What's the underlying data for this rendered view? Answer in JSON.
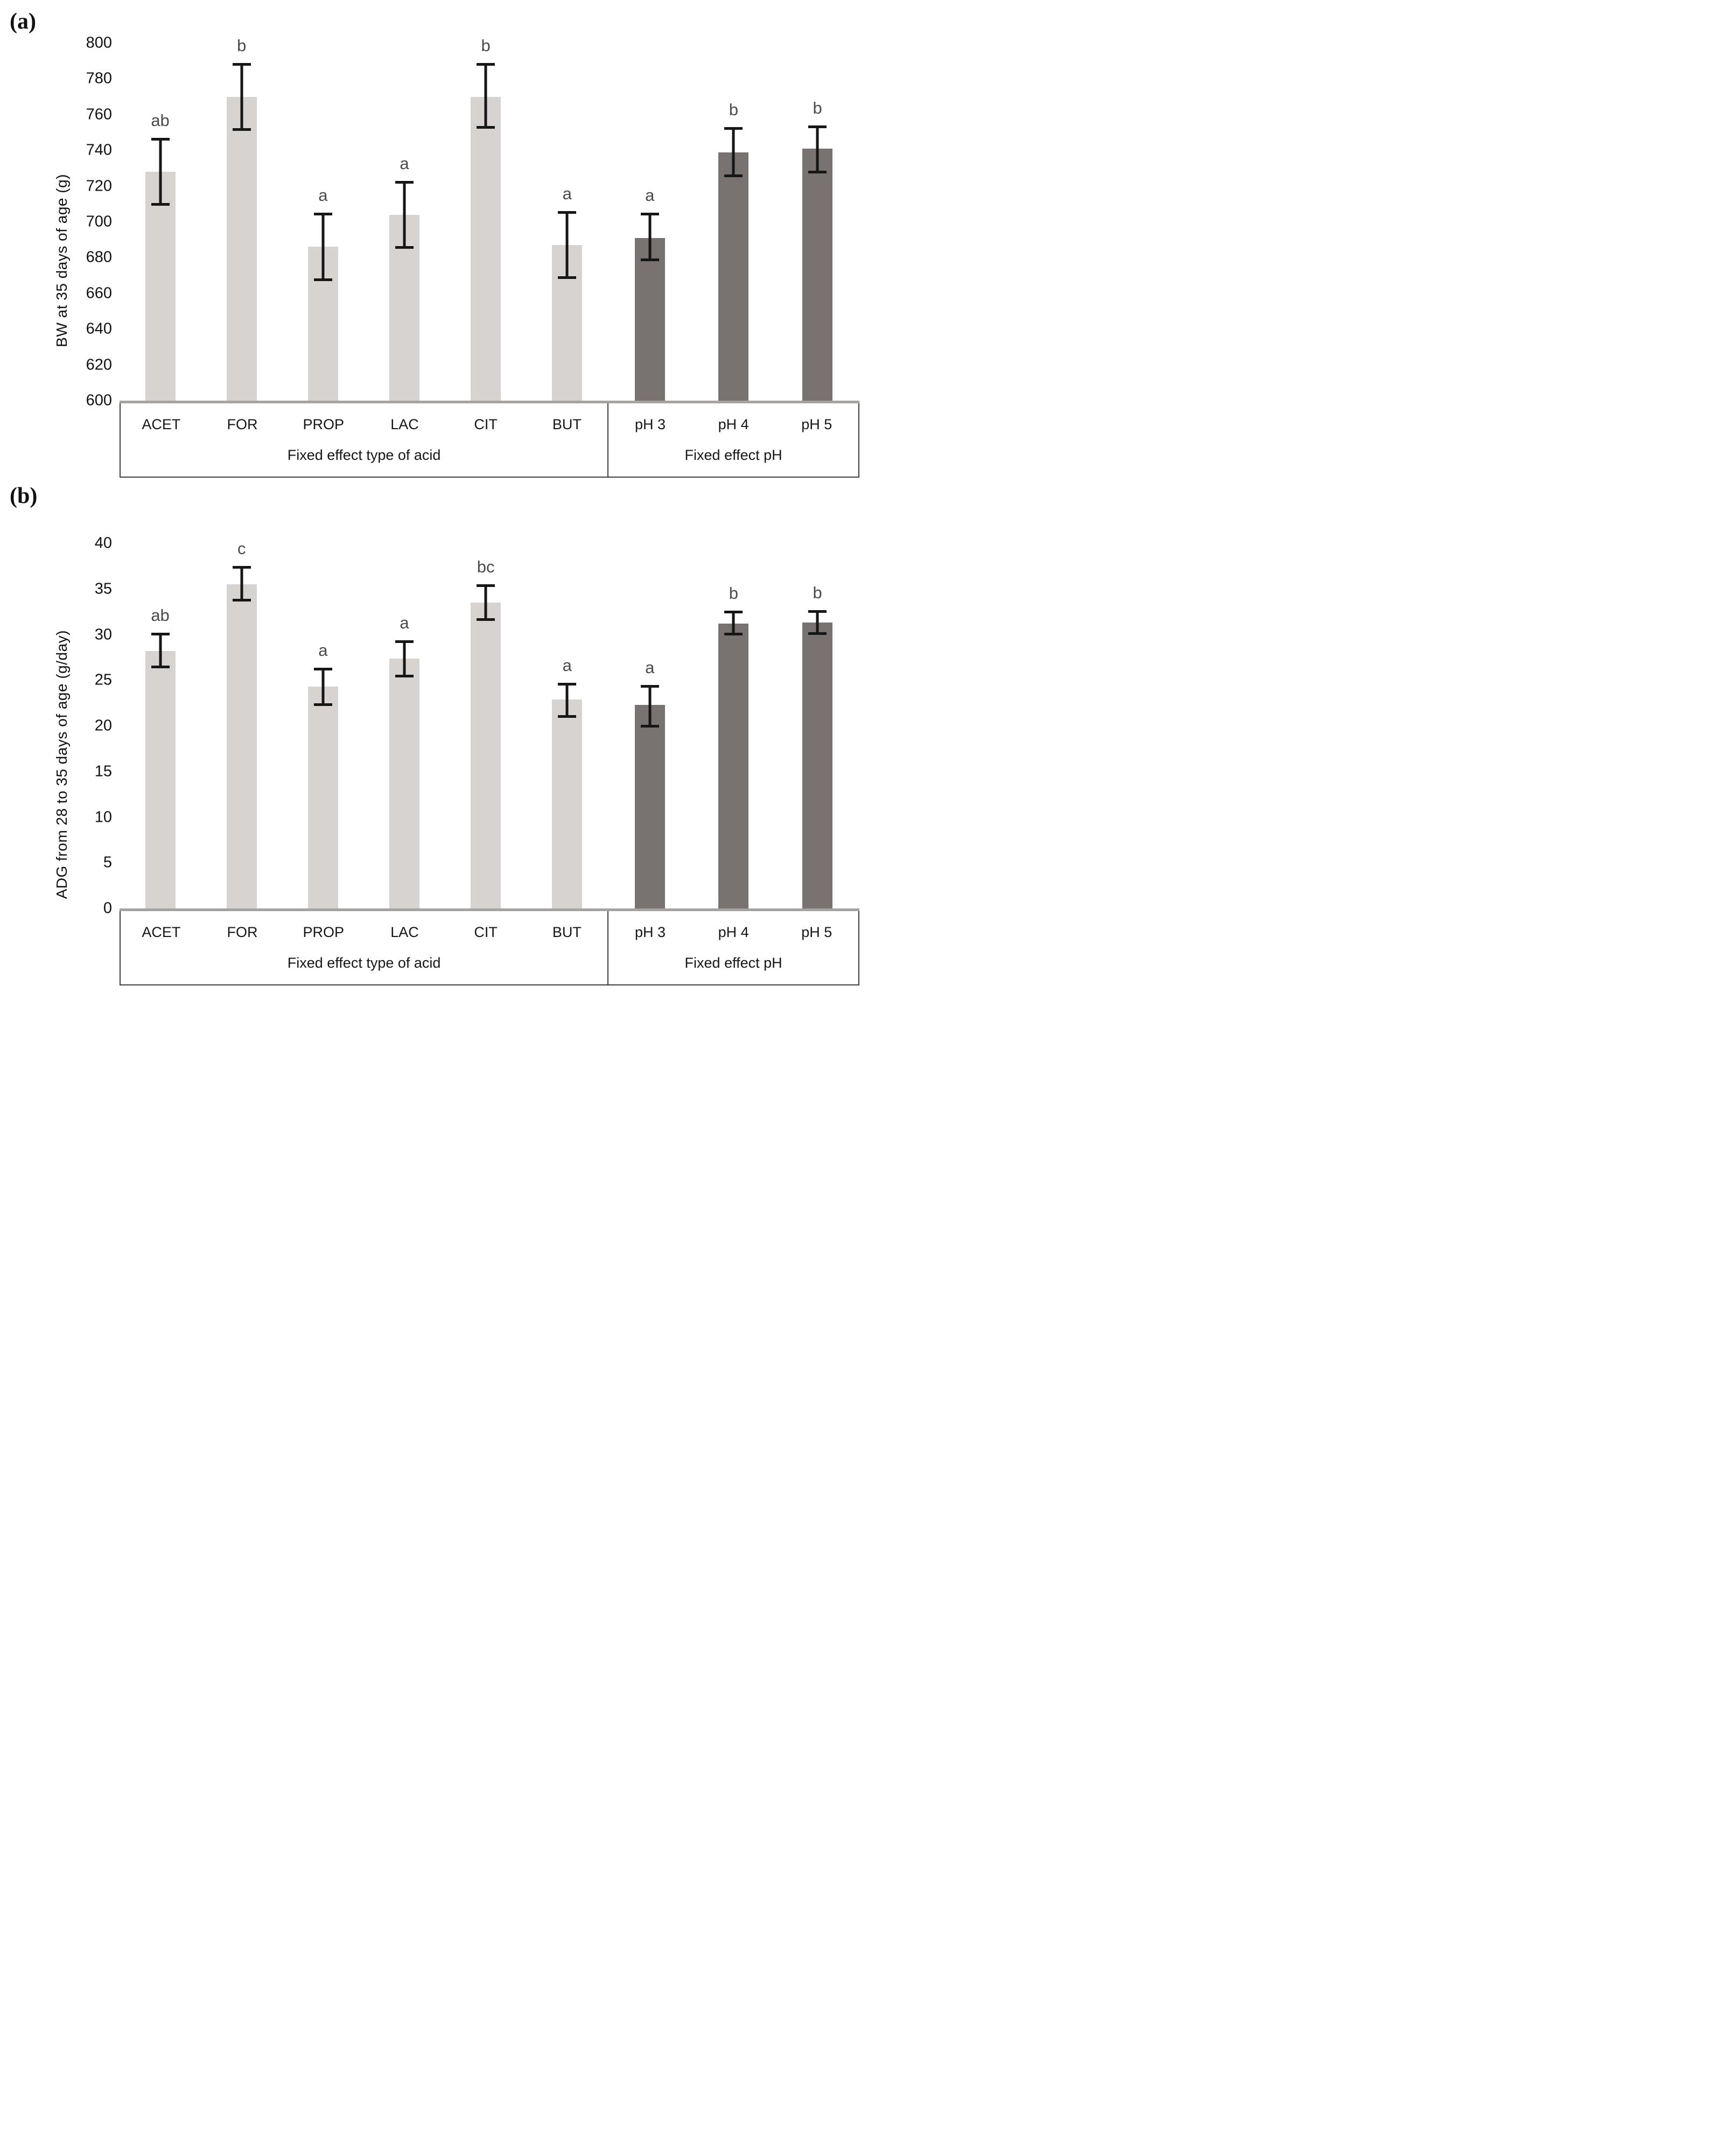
{
  "colors": {
    "light_bar": "#d7d3d1",
    "dark_bar": "#787271",
    "error_bar": "#161616",
    "sig_letter": "#4a4a4a",
    "axis_line": "#a6a2a0",
    "box_border": "#3f3f3f",
    "text": "#1a1a1a"
  },
  "chart_data": [
    {
      "id": "a",
      "type": "bar",
      "panel_label": "(a)",
      "title": "",
      "xlabel": "",
      "ylabel": "BW at 35 days of age (g)",
      "ylim": [
        600,
        800
      ],
      "yticks": [
        800,
        780,
        760,
        740,
        720,
        700,
        680,
        660,
        640,
        620,
        600
      ],
      "grid": false,
      "legend": false,
      "groups": [
        {
          "label": "Fixed effect type of acid",
          "bar_color_key": "light_bar",
          "bars": [
            {
              "category": "ACET",
              "value": 728,
              "err_low": 709,
              "err_high": 747,
              "sig": "ab"
            },
            {
              "category": "FOR",
              "value": 770,
              "err_low": 751,
              "err_high": 789,
              "sig": "b"
            },
            {
              "category": "PROP",
              "value": 686,
              "err_low": 667,
              "err_high": 705,
              "sig": "a"
            },
            {
              "category": "LAC",
              "value": 704,
              "err_low": 685,
              "err_high": 723,
              "sig": "a"
            },
            {
              "category": "CIT",
              "value": 770,
              "err_low": 752,
              "err_high": 789,
              "sig": "b"
            },
            {
              "category": "BUT",
              "value": 687,
              "err_low": 668,
              "err_high": 706,
              "sig": "a"
            }
          ]
        },
        {
          "label": "Fixed effect pH",
          "bar_color_key": "dark_bar",
          "bars": [
            {
              "category": "pH 3",
              "value": 691,
              "err_low": 678,
              "err_high": 705,
              "sig": "a"
            },
            {
              "category": "pH 4",
              "value": 739,
              "err_low": 725,
              "err_high": 753,
              "sig": "b"
            },
            {
              "category": "pH 5",
              "value": 741,
              "err_low": 727,
              "err_high": 754,
              "sig": "b"
            }
          ]
        }
      ]
    },
    {
      "id": "b",
      "type": "bar",
      "panel_label": "(b)",
      "title": "",
      "xlabel": "",
      "ylabel": "ADG from 28 to 35 days of age (g/day)",
      "ylim": [
        0,
        40
      ],
      "yticks": [
        40,
        35,
        30,
        25,
        20,
        15,
        10,
        5,
        0
      ],
      "grid": false,
      "legend": false,
      "groups": [
        {
          "label": "Fixed effect type of acid",
          "bar_color_key": "light_bar",
          "bars": [
            {
              "category": "ACET",
              "value": 28.2,
              "err_low": 26.3,
              "err_high": 30.2,
              "sig": "ab"
            },
            {
              "category": "FOR",
              "value": 35.5,
              "err_low": 33.6,
              "err_high": 37.5,
              "sig": "c"
            },
            {
              "category": "PROP",
              "value": 24.3,
              "err_low": 22.2,
              "err_high": 26.4,
              "sig": "a"
            },
            {
              "category": "LAC",
              "value": 27.4,
              "err_low": 25.3,
              "err_high": 29.4,
              "sig": "a"
            },
            {
              "category": "CIT",
              "value": 33.5,
              "err_low": 31.5,
              "err_high": 35.5,
              "sig": "bc"
            },
            {
              "category": "BUT",
              "value": 22.9,
              "err_low": 20.9,
              "err_high": 24.7,
              "sig": "a"
            }
          ]
        },
        {
          "label": "Fixed effect pH",
          "bar_color_key": "dark_bar",
          "bars": [
            {
              "category": "pH 3",
              "value": 22.3,
              "err_low": 19.8,
              "err_high": 24.5,
              "sig": "a"
            },
            {
              "category": "pH 4",
              "value": 31.2,
              "err_low": 29.9,
              "err_high": 32.6,
              "sig": "b"
            },
            {
              "category": "pH 5",
              "value": 31.3,
              "err_low": 30.0,
              "err_high": 32.7,
              "sig": "b"
            }
          ]
        }
      ]
    }
  ]
}
